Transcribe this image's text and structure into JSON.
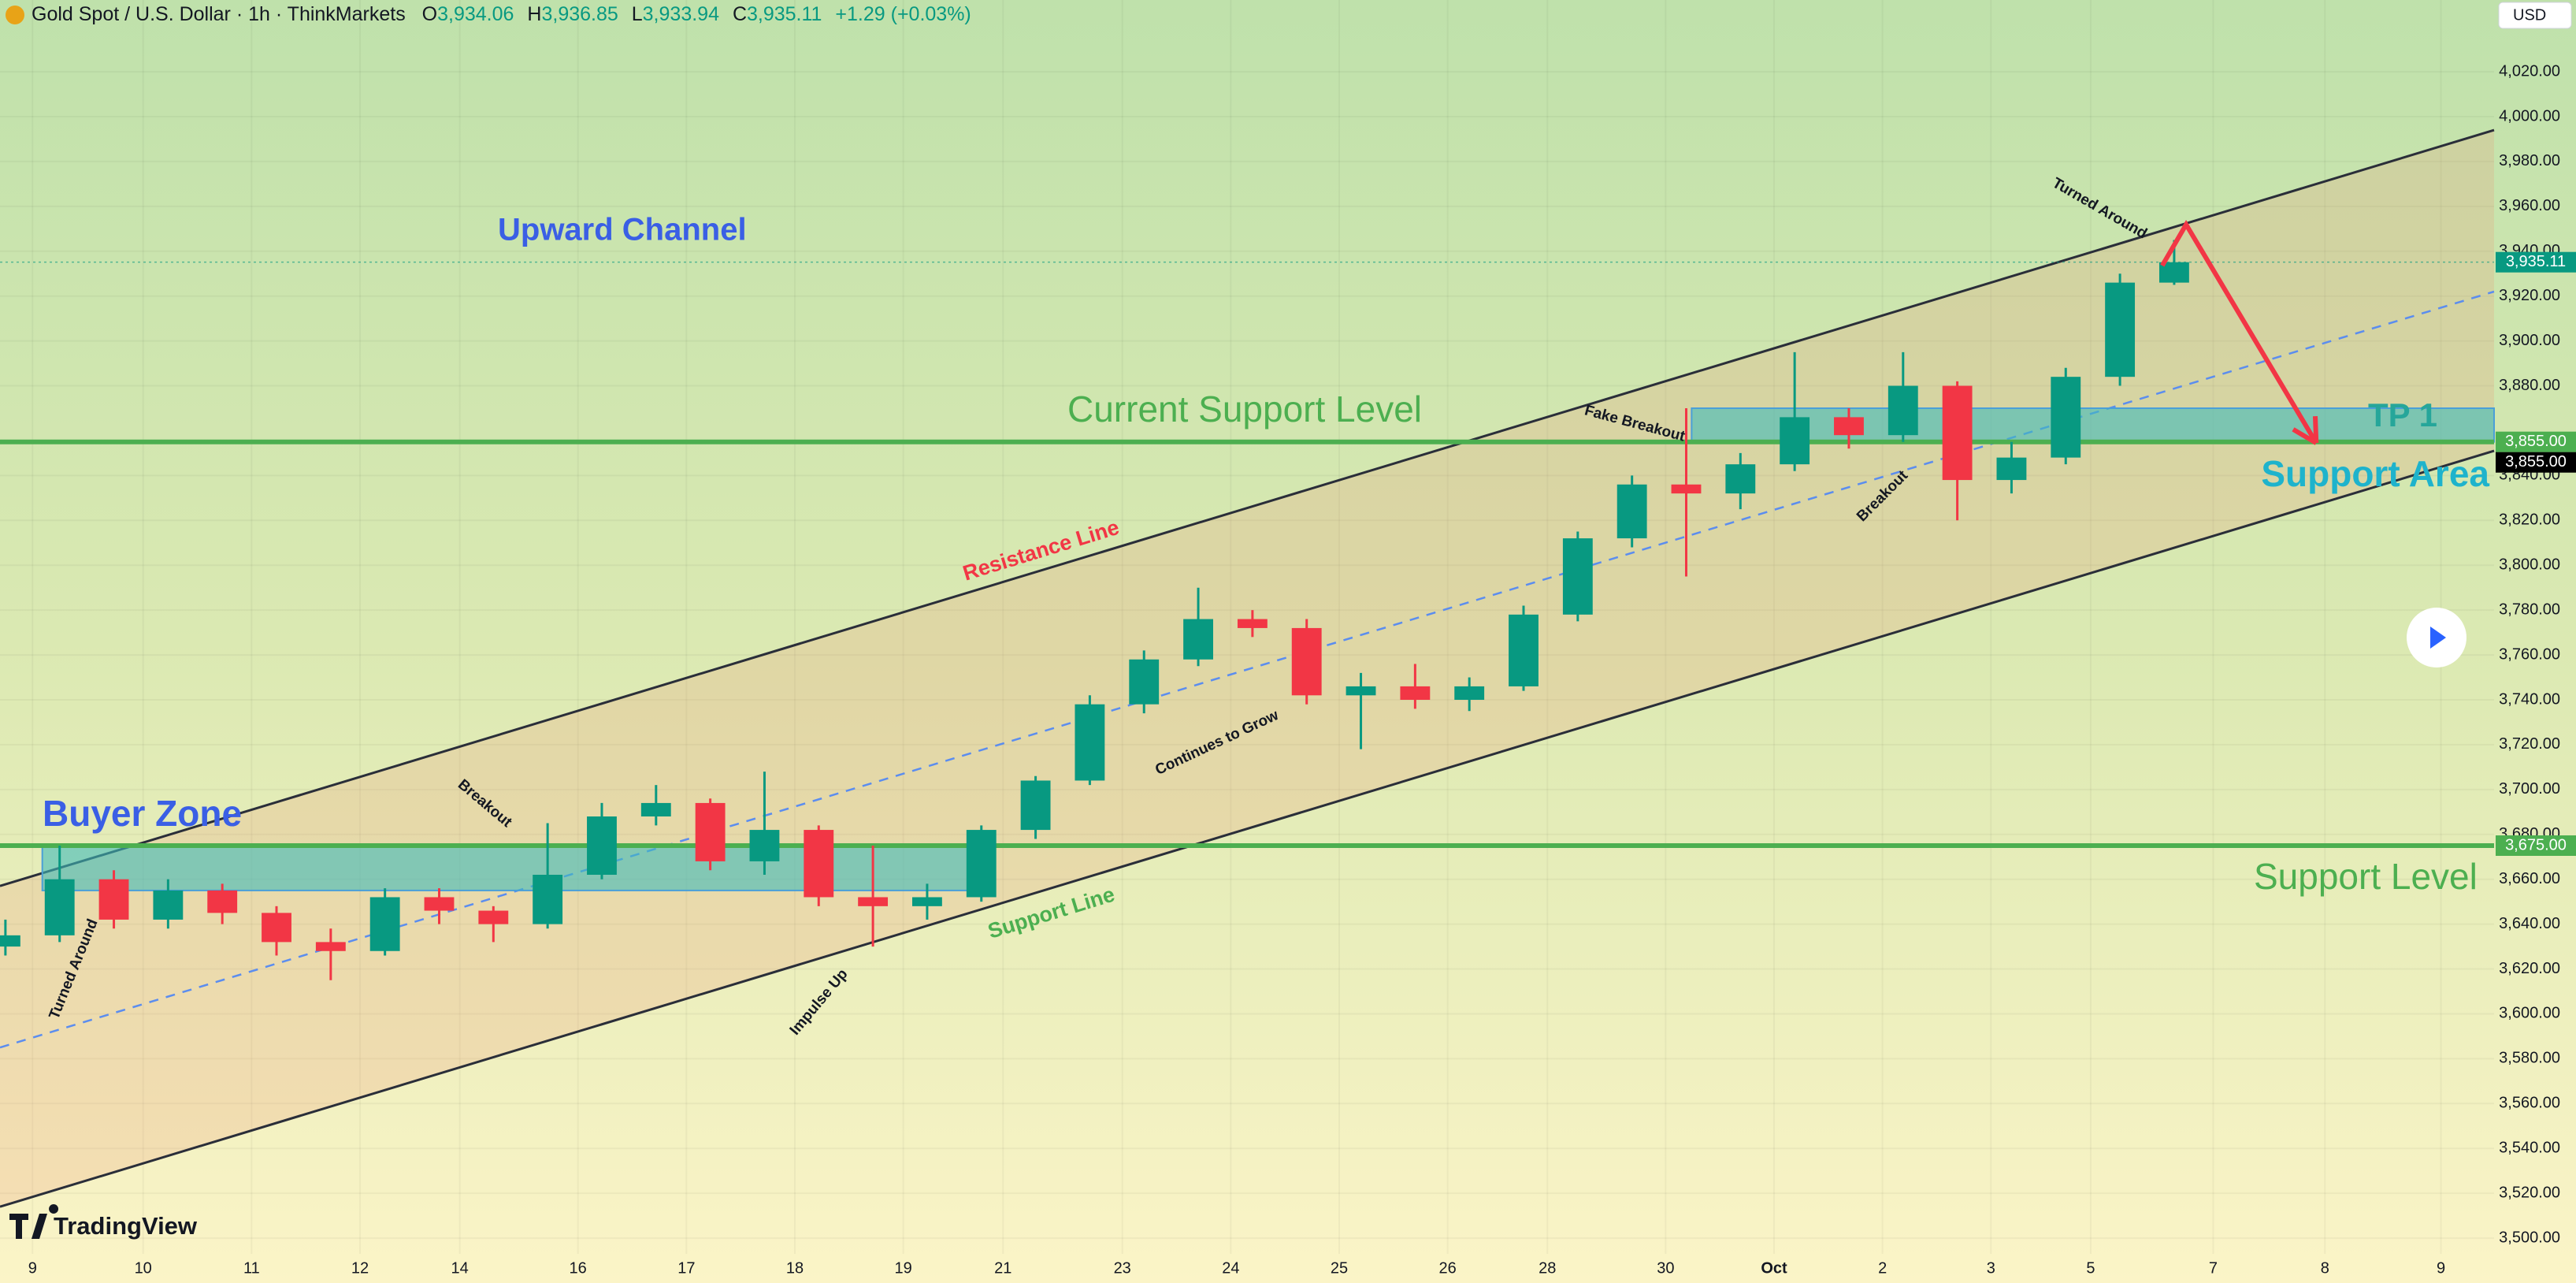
{
  "header": {
    "symbol": "Gold Spot / U.S. Dollar · 1h · ThinkMarkets",
    "ohlc": [
      {
        "key": "O",
        "value": "3,934.06"
      },
      {
        "key": "H",
        "value": "3,936.85"
      },
      {
        "key": "L",
        "value": "3,933.94"
      },
      {
        "key": "C",
        "value": "3,935.11"
      }
    ],
    "change": "+1.29 (+0.03%)",
    "currency": "USD",
    "brand": "TradingView"
  },
  "chart_data": {
    "type": "candlestick",
    "title": "Upward Channel",
    "x": [
      -0.25,
      0.25,
      0.75,
      1.25,
      1.75,
      2.25,
      2.75,
      3.25,
      3.75,
      4.25,
      4.75,
      5.25,
      5.75,
      6.25,
      6.75,
      7.25,
      7.75,
      8.25,
      8.75,
      9.25,
      9.75,
      10.25,
      10.75,
      11.25,
      11.75,
      12.25,
      12.75,
      13.25,
      13.75,
      14.25,
      14.75,
      15.25,
      15.75,
      16.25,
      16.75,
      17.25,
      17.75,
      18.25,
      18.75,
      19.25,
      19.75
    ],
    "open": [
      3630,
      3635,
      3660,
      3642,
      3655,
      3645,
      3632,
      3628,
      3652,
      3646,
      3640,
      3662,
      3688,
      3694,
      3668,
      3682,
      3652,
      3648,
      3652,
      3682,
      3704,
      3738,
      3758,
      3776,
      3772,
      3742,
      3746,
      3740,
      3746,
      3778,
      3812,
      3836,
      3832,
      3845,
      3866,
      3858,
      3880,
      3838,
      3848,
      3884,
      3926
    ],
    "high": [
      3642,
      3675,
      3664,
      3660,
      3658,
      3648,
      3638,
      3656,
      3656,
      3648,
      3685,
      3694,
      3702,
      3696,
      3708,
      3684,
      3675,
      3658,
      3684,
      3706,
      3742,
      3762,
      3790,
      3780,
      3776,
      3752,
      3756,
      3750,
      3782,
      3815,
      3840,
      3870,
      3850,
      3895,
      3870,
      3895,
      3882,
      3855,
      3888,
      3930,
      3945
    ],
    "low": [
      3626,
      3632,
      3638,
      3638,
      3640,
      3626,
      3615,
      3626,
      3640,
      3632,
      3638,
      3660,
      3684,
      3664,
      3662,
      3648,
      3630,
      3642,
      3650,
      3678,
      3702,
      3734,
      3755,
      3768,
      3738,
      3718,
      3736,
      3735,
      3744,
      3775,
      3808,
      3795,
      3825,
      3842,
      3852,
      3855,
      3820,
      3832,
      3845,
      3880,
      3925
    ],
    "close": [
      3635,
      3660,
      3642,
      3655,
      3645,
      3632,
      3628,
      3652,
      3646,
      3640,
      3662,
      3688,
      3694,
      3668,
      3682,
      3652,
      3648,
      3652,
      3682,
      3704,
      3738,
      3758,
      3776,
      3772,
      3742,
      3746,
      3740,
      3746,
      3778,
      3812,
      3836,
      3832,
      3845,
      3866,
      3858,
      3880,
      3838,
      3848,
      3884,
      3926,
      3935.11
    ],
    "up_color": "#089981",
    "down_color": "#f23645",
    "xlim": [
      -0.3,
      22.7
    ],
    "xticks": [
      {
        "value": 0,
        "label": "9"
      },
      {
        "value": 1.02,
        "label": "10"
      },
      {
        "value": 2.02,
        "label": "11"
      },
      {
        "value": 3.02,
        "label": "12"
      },
      {
        "value": 3.94,
        "label": "14"
      },
      {
        "value": 5.03,
        "label": "16"
      },
      {
        "value": 6.03,
        "label": "17"
      },
      {
        "value": 7.03,
        "label": "18"
      },
      {
        "value": 8.03,
        "label": "19"
      },
      {
        "value": 8.95,
        "label": "21"
      },
      {
        "value": 10.05,
        "label": "23"
      },
      {
        "value": 11.05,
        "label": "24"
      },
      {
        "value": 12.05,
        "label": "25"
      },
      {
        "value": 13.05,
        "label": "26"
      },
      {
        "value": 13.97,
        "label": "28"
      },
      {
        "value": 15.06,
        "label": "30"
      },
      {
        "value": 16.06,
        "label": "Oct"
      },
      {
        "value": 17.06,
        "label": "2"
      },
      {
        "value": 18.06,
        "label": "3"
      },
      {
        "value": 18.98,
        "label": "5"
      },
      {
        "value": 20.11,
        "label": "7"
      },
      {
        "value": 21.14,
        "label": "8"
      },
      {
        "value": 22.21,
        "label": "9"
      }
    ],
    "ylim": [
      3493,
      4052
    ],
    "yticks": [
      {
        "value": 3500,
        "label": "3,500.00"
      },
      {
        "value": 3520,
        "label": "3,520.00"
      },
      {
        "value": 3540,
        "label": "3,540.00"
      },
      {
        "value": 3560,
        "label": "3,560.00"
      },
      {
        "value": 3580,
        "label": "3,580.00"
      },
      {
        "value": 3600,
        "label": "3,600.00"
      },
      {
        "value": 3620,
        "label": "3,620.00"
      },
      {
        "value": 3640,
        "label": "3,640.00"
      },
      {
        "value": 3660,
        "label": "3,660.00"
      },
      {
        "value": 3680,
        "label": "3,680.00"
      },
      {
        "value": 3700,
        "label": "3,700.00"
      },
      {
        "value": 3720,
        "label": "3,720.00"
      },
      {
        "value": 3740,
        "label": "3,740.00"
      },
      {
        "value": 3760,
        "label": "3,760.00"
      },
      {
        "value": 3780,
        "label": "3,780.00"
      },
      {
        "value": 3800,
        "label": "3,800.00"
      },
      {
        "value": 3820,
        "label": "3,820.00"
      },
      {
        "value": 3840,
        "label": "3,840.00"
      },
      {
        "value": 3880,
        "label": "3,880.00"
      },
      {
        "value": 3900,
        "label": "3,900.00"
      },
      {
        "value": 3920,
        "label": "3,920.00"
      },
      {
        "value": 3940,
        "label": "3,940.00"
      },
      {
        "value": 3960,
        "label": "3,960.00"
      },
      {
        "value": 3980,
        "label": "3,980.00"
      },
      {
        "value": 4000,
        "label": "4,000.00"
      },
      {
        "value": 4020,
        "label": "4,020.00"
      }
    ],
    "grid": true,
    "hlines": [
      {
        "name": "Current Support Level",
        "value": 3855,
        "label": "3,855.00",
        "color": "#4caf50"
      },
      {
        "name": "Support Level",
        "value": 3675,
        "label": "3,675.00",
        "color": "#4caf50"
      }
    ],
    "last_price": {
      "value": 3935.11,
      "label": "3,935.11",
      "color": "#089981"
    },
    "level_tag": {
      "value": 3855,
      "label": "3,855.00",
      "color": "#000000"
    },
    "channel": {
      "upper": {
        "x": [
          -0.3,
          22.7
        ],
        "y": [
          3657,
          3994
        ]
      },
      "middle": {
        "x": [
          -0.3,
          22.7
        ],
        "y": [
          3585,
          3922
        ]
      },
      "lower": {
        "x": [
          -0.3,
          22.7
        ],
        "y": [
          3514,
          3851
        ]
      }
    },
    "zones": [
      {
        "name": "Buyer Zone",
        "x": [
          0.09,
          8.79
        ],
        "y": [
          3655,
          3675
        ]
      },
      {
        "name": "Support Area",
        "x": [
          15.3,
          22.7
        ],
        "y": [
          3855,
          3870
        ]
      }
    ],
    "arrow": {
      "x": [
        19.64,
        19.86,
        21.06
      ],
      "y": [
        3933.6,
        3951.9,
        3854.5
      ],
      "color": "#f23645"
    },
    "annotations": [
      "Resistance Line",
      "Support Line",
      "TP 1",
      "Turned Around",
      "Breakout",
      "Impulse Up",
      "Continues to Grow",
      "Fake Breakout",
      "Breakout",
      "Turned Around"
    ]
  }
}
